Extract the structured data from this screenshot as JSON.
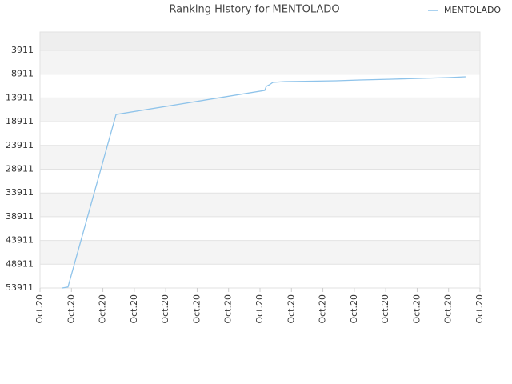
{
  "chart_data": {
    "type": "line",
    "title": "Ranking History for MENTOLADO",
    "xlim": [
      0,
      14
    ],
    "xticks": [
      {
        "value": 0,
        "label": "Oct.20"
      },
      {
        "value": 1,
        "label": "Oct.20"
      },
      {
        "value": 2,
        "label": "Oct.20"
      },
      {
        "value": 3,
        "label": "Oct.20"
      },
      {
        "value": 4,
        "label": "Oct.20"
      },
      {
        "value": 5,
        "label": "Oct.20"
      },
      {
        "value": 6,
        "label": "Oct.20"
      },
      {
        "value": 7,
        "label": "Oct.20"
      },
      {
        "value": 8,
        "label": "Oct.20"
      },
      {
        "value": 9,
        "label": "Oct.20"
      },
      {
        "value": 10,
        "label": "Oct.20"
      },
      {
        "value": 11,
        "label": "Oct.20"
      },
      {
        "value": 12,
        "label": "Oct.20"
      },
      {
        "value": 13,
        "label": "Oct.20"
      },
      {
        "value": 14,
        "label": "Oct.20"
      }
    ],
    "ylim": [
      53911,
      41
    ],
    "yticks": [
      53911,
      48911,
      43911,
      38911,
      33911,
      28911,
      23911,
      18911,
      13911,
      8911,
      3911
    ],
    "grid": true,
    "legend": "top-right",
    "series": [
      {
        "name": "MENTOLADO",
        "color": "#8ec3ea",
        "x": [
          0.71,
          0.89,
          2.42,
          7.15,
          7.2,
          7.3,
          7.41,
          7.79,
          9.42,
          10.18,
          11.2,
          12.98,
          13.54
        ],
        "values": [
          53911,
          53700,
          17400,
          12330,
          11490,
          11150,
          10650,
          10480,
          10310,
          10140,
          9970,
          9640,
          9470
        ]
      }
    ]
  }
}
